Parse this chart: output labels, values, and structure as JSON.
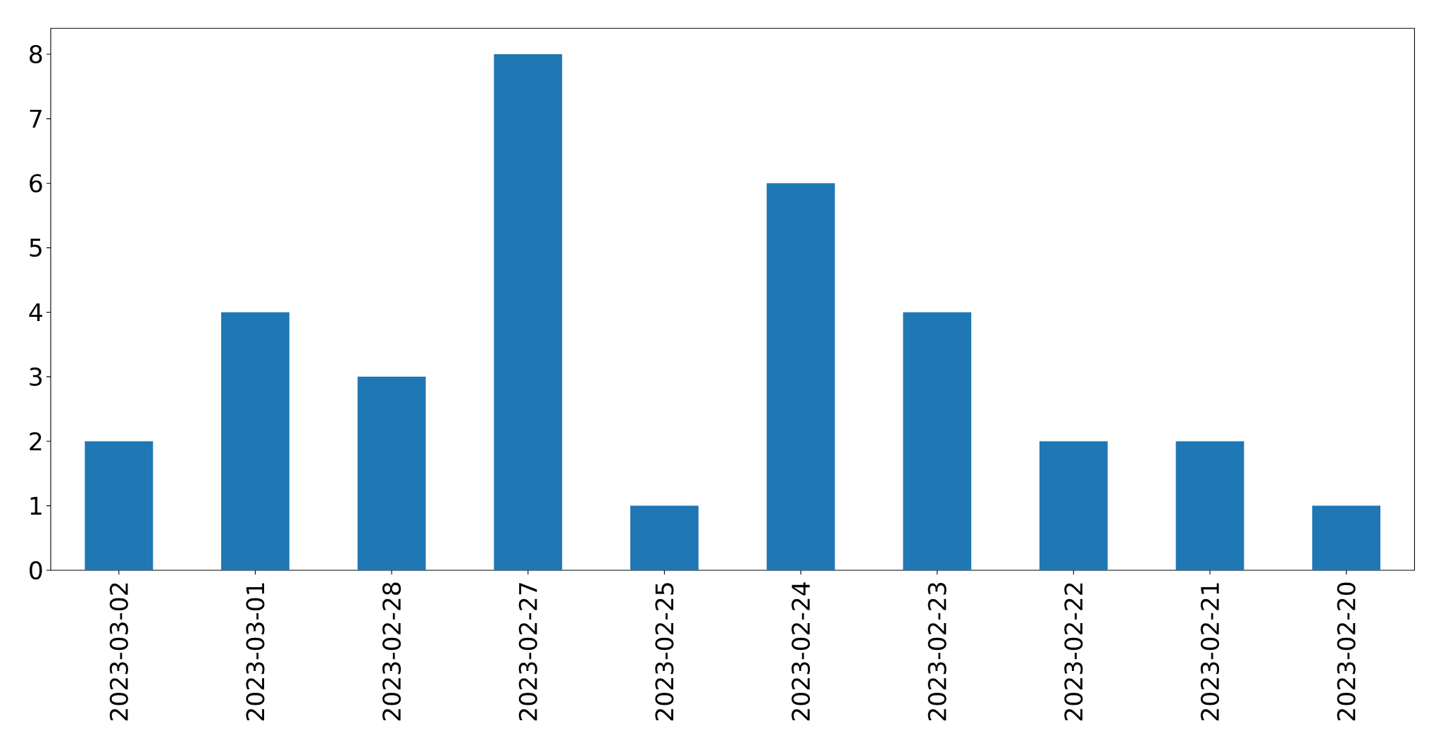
{
  "chart_data": {
    "type": "bar",
    "categories": [
      "2023-03-02",
      "2023-03-01",
      "2023-02-28",
      "2023-02-27",
      "2023-02-25",
      "2023-02-24",
      "2023-02-23",
      "2023-02-22",
      "2023-02-21",
      "2023-02-20"
    ],
    "values": [
      2,
      4,
      3,
      8,
      1,
      6,
      4,
      2,
      2,
      1
    ],
    "color": "#1f77b4",
    "ylim": [
      0,
      8.4
    ],
    "yticks": [
      0,
      1,
      2,
      3,
      4,
      5,
      6,
      7,
      8
    ]
  }
}
